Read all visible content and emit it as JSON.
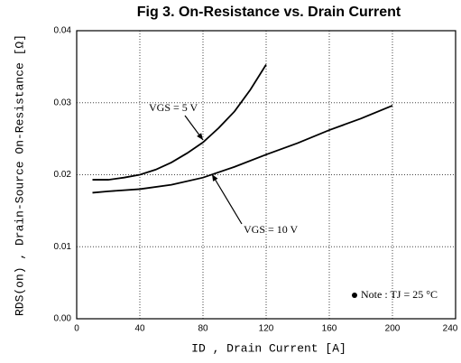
{
  "chart_data": {
    "type": "line",
    "title": "Fig 3. On-Resistance vs. Drain Current",
    "xlabel": "ID , Drain Current  [A]",
    "ylabel": "RDS(on) ,  Drain-Source On-Resistance  [Ω]",
    "note": "Note : TJ = 25 °C",
    "xlim": [
      0,
      240
    ],
    "xticks": [
      0,
      40,
      80,
      120,
      160,
      200,
      240
    ],
    "ylim": [
      0,
      0.04
    ],
    "yticks": [
      {
        "value": 0,
        "label": "0.00"
      },
      0.01,
      0.02,
      0.03,
      0.04
    ],
    "grid": true,
    "series": [
      {
        "name": "VGS = 5 V",
        "color": "#000000",
        "x": [
          10,
          20,
          30,
          40,
          50,
          60,
          70,
          80,
          90,
          100,
          110,
          120
        ],
        "values": [
          0.0193,
          0.0193,
          0.0196,
          0.02,
          0.0207,
          0.0217,
          0.023,
          0.0245,
          0.0265,
          0.0288,
          0.0318,
          0.0353
        ]
      },
      {
        "name": "VGS = 10 V",
        "color": "#000000",
        "x": [
          10,
          20,
          40,
          60,
          80,
          100,
          120,
          140,
          160,
          180,
          200
        ],
        "values": [
          0.0175,
          0.0177,
          0.018,
          0.0186,
          0.0196,
          0.0211,
          0.0228,
          0.0244,
          0.0262,
          0.0278,
          0.0296
        ]
      }
    ]
  }
}
